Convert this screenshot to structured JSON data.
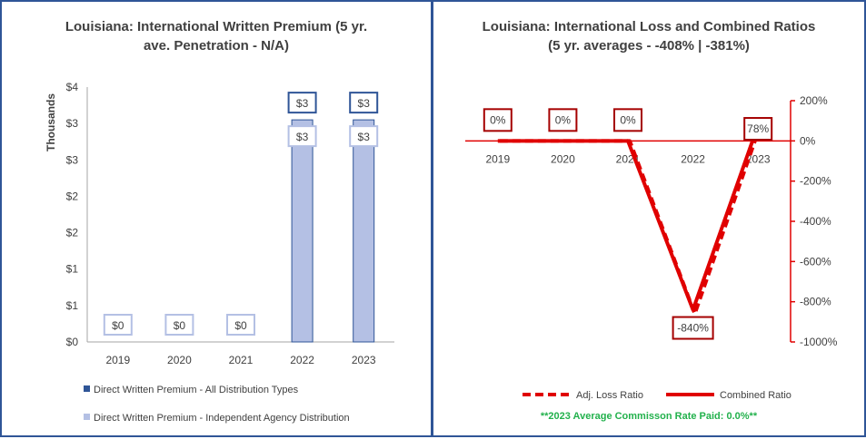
{
  "chart_data": [
    {
      "type": "bar",
      "title_line1": "Louisiana: International Written Premium (5 yr.",
      "title_line2": "ave. Penetration - N/A)",
      "ylabel": "Thousands",
      "y_ticks": [
        "$0",
        "$1",
        "$1",
        "$2",
        "$2",
        "$3",
        "$3",
        "$4"
      ],
      "ylim": [
        0,
        3.5
      ],
      "categories": [
        "2019",
        "2020",
        "2021",
        "2022",
        "2023"
      ],
      "series": [
        {
          "name": "Direct Written Premium - All Distribution Types",
          "values": [
            0,
            0,
            0,
            3.05,
            3.05
          ],
          "labels": [
            "$0",
            "$0",
            "$0",
            "$3",
            "$3"
          ],
          "color": "#2f5597"
        },
        {
          "name": "Direct Written Premium - Independent Agency Distribution",
          "values": [
            0,
            0,
            0,
            3.05,
            3.05
          ],
          "labels": [
            "$0",
            "$0",
            "$0",
            "$3",
            "$3"
          ],
          "color": "#b4c0e4"
        }
      ]
    },
    {
      "type": "line",
      "title_line1": "Louisiana: International Loss and Combined Ratios",
      "title_line2": "(5 yr. averages - -408% | -381%)",
      "categories": [
        "2019",
        "2020",
        "2021",
        "2022",
        "2023"
      ],
      "y_ticks": [
        "200%",
        "0%",
        "-200%",
        "-400%",
        "-600%",
        "-800%",
        "-1000%"
      ],
      "ylim": [
        -1000,
        200
      ],
      "series": [
        {
          "name": "Adj. Loss Ratio",
          "values": [
            0,
            0,
            0,
            -860,
            70
          ],
          "color": "#e00000",
          "dash": true
        },
        {
          "name": "Combined Ratio",
          "values": [
            0,
            0,
            0,
            -840,
            78
          ],
          "labels": [
            "0%",
            "0%",
            "0%",
            "-840%",
            "78%"
          ],
          "color": "#e00000",
          "dash": false
        }
      ],
      "footnote": "**2023 Average Commisson Rate Paid: 0.0%**"
    }
  ]
}
